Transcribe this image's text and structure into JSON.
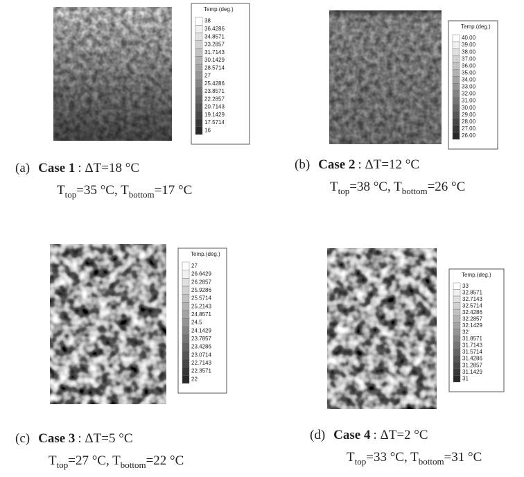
{
  "panels": [
    {
      "legend": {
        "title": "Temp.(deg.)",
        "labels": [
          "38",
          "36.4286",
          "34.8571",
          "33.2857",
          "31.7143",
          "30.1429",
          "28.5714",
          "27",
          "25.4286",
          "23.8571",
          "22.2857",
          "20.7143",
          "19.1429",
          "17.5714",
          "16"
        ]
      },
      "caption": {
        "label": "(a)",
        "case": "Case 1",
        "delta": ": ΔT=18 °C",
        "line2": [
          "T",
          "top",
          "=35 °C, T",
          "bottom",
          "=17 °C"
        ]
      }
    },
    {
      "legend": {
        "title": "Temp.(deg.)",
        "labels": [
          "40.00",
          "39.00",
          "38.00",
          "37.00",
          "36.00",
          "35.00",
          "34.00",
          "33.00",
          "32.00",
          "31.00",
          "30.00",
          "29.00",
          "28.00",
          "27.00",
          "26.00"
        ]
      },
      "caption": {
        "label": "(b)",
        "case": "Case 2",
        "delta": ": ΔT=12 °C",
        "line2": [
          "T",
          "top",
          "=38 °C, T",
          "bottom",
          "=26 °C"
        ]
      }
    },
    {
      "legend": {
        "title": "Temp.(deg.)",
        "labels": [
          "27",
          "26.6429",
          "26.2857",
          "25.9286",
          "25.5714",
          "25.2143",
          "24.8571",
          "24.5",
          "24.1429",
          "23.7857",
          "23.4286",
          "23.0714",
          "22.7143",
          "22.3571",
          "22"
        ]
      },
      "caption": {
        "label": "(c)",
        "case": "Case 3",
        "delta": ": ΔT=5 °C",
        "line2": [
          "T",
          "top",
          "=27 °C, T",
          "bottom",
          "=22 °C"
        ]
      }
    },
    {
      "legend": {
        "title": "Temp.(deg.)",
        "labels": [
          "33",
          "32.8571",
          "32.7143",
          "32.5714",
          "32.4286",
          "32.2857",
          "32.1429",
          "32",
          "31.8571",
          "31.7143",
          "31.5714",
          "31.4286",
          "31.2857",
          "31.1429",
          "31"
        ]
      },
      "caption": {
        "label": "(d)",
        "case": "Case 4",
        "delta": ": ΔT=2 °C",
        "line2": [
          "T",
          "top",
          "=33 °C, T",
          "bottom",
          "=31 °C"
        ]
      }
    }
  ]
}
